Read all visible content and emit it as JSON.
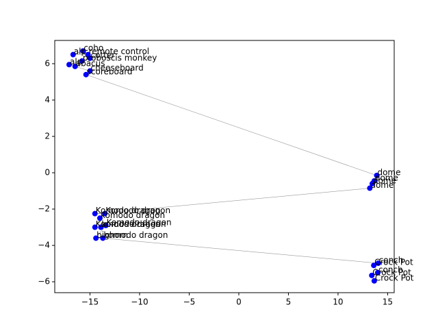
{
  "chart_data": {
    "type": "scatter",
    "x": [
      -15.7,
      -16.7,
      -15.2,
      -15.0,
      -15.8,
      -17.1,
      -16.5,
      -15.0,
      -15.4,
      13.9,
      13.65,
      13.45,
      13.2,
      -14.5,
      -13.5,
      -14.0,
      -14.5,
      -13.9,
      -13.4,
      -14.4,
      -13.7,
      14.05,
      13.6,
      14.0,
      13.4,
      13.65
    ],
    "values": [
      6.7,
      6.5,
      6.5,
      6.3,
      6.15,
      5.95,
      5.85,
      5.6,
      5.4,
      -0.15,
      -0.45,
      -0.6,
      -0.85,
      -2.25,
      -2.25,
      -2.5,
      -3.0,
      -3.0,
      -2.9,
      -3.6,
      -3.6,
      -4.98,
      -5.1,
      -5.5,
      -5.65,
      -5.95
    ],
    "labels": [
      "coho",
      "alp",
      "remote control",
      "cotter",
      "proboscis monkey",
      "alp",
      "abacus",
      "cheeseboard",
      "scoreboard",
      "dome",
      "dome",
      "dome",
      "dome",
      "Komodo dragon",
      "Komodo dragon",
      "komodo dragon",
      "Komodo dragon",
      "komodo dragon",
      "Komodo dragon",
      "bighorn",
      "komodo dragon",
      "conch",
      "Crock Pot",
      "conch",
      "Crock Pot",
      "Crock Pot"
    ],
    "color": "#0000ff",
    "line_color": "#999999",
    "xlim": [
      -18.55,
      15.66
    ],
    "ylim": [
      -6.6,
      7.28
    ],
    "xticks": [
      {
        "value": -15,
        "label": "−15"
      },
      {
        "value": -10,
        "label": "−10"
      },
      {
        "value": -5,
        "label": "−5"
      },
      0,
      5,
      10,
      15
    ],
    "yticks": [
      {
        "value": -6,
        "label": "−6"
      },
      {
        "value": -4,
        "label": "−4"
      },
      {
        "value": -2,
        "label": "−2"
      },
      0,
      2,
      4,
      6
    ]
  }
}
